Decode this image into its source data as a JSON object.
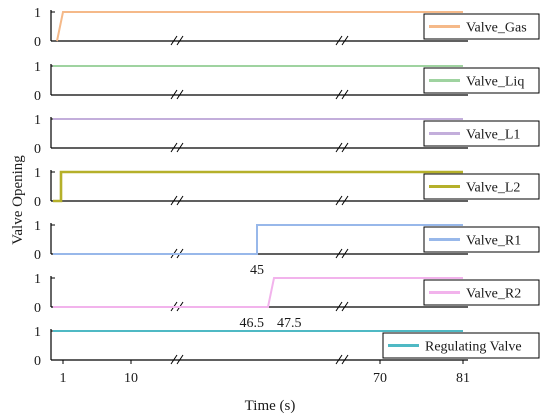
{
  "chart_data": {
    "type": "line",
    "ylabel": "Valve Opening",
    "xlabel": "Time (s)",
    "x_ticks": [
      1,
      10,
      70,
      81
    ],
    "y_ticks": [
      0,
      1
    ],
    "ylim": [
      0,
      1
    ],
    "axis_breaks": "two broken-axis marks on every subplot x-axis",
    "annotations": [
      "45",
      "46.5",
      "47.5"
    ],
    "legend_placement": "right of each subplot",
    "series": [
      {
        "name": "Valve_Gas",
        "color": "#f5b989",
        "points": [
          [
            0.4,
            0
          ],
          [
            1,
            1
          ],
          [
            81,
            1
          ]
        ]
      },
      {
        "name": "Valve_Liq",
        "color": "#9fd3a0",
        "points": [
          [
            0,
            1
          ],
          [
            81,
            1
          ]
        ]
      },
      {
        "name": "Valve_L1",
        "color": "#c3aedb",
        "points": [
          [
            0,
            1
          ],
          [
            81,
            1
          ]
        ]
      },
      {
        "name": "Valve_L2",
        "color": "#b5b02a",
        "points": [
          [
            0,
            0
          ],
          [
            0.8,
            0
          ],
          [
            0.8,
            1
          ],
          [
            81,
            1
          ]
        ]
      },
      {
        "name": "Valve_R1",
        "color": "#98b8ea",
        "points": [
          [
            0,
            0
          ],
          [
            45,
            0
          ],
          [
            45,
            1
          ],
          [
            81,
            1
          ]
        ]
      },
      {
        "name": "Valve_R2",
        "color": "#f2b3ec",
        "points": [
          [
            0,
            0
          ],
          [
            46.5,
            0
          ],
          [
            47.5,
            1
          ],
          [
            81,
            1
          ]
        ]
      },
      {
        "name": "Regulating Valve",
        "color": "#4fb9c4",
        "points": [
          [
            0,
            1
          ],
          [
            81,
            1
          ]
        ]
      }
    ]
  }
}
